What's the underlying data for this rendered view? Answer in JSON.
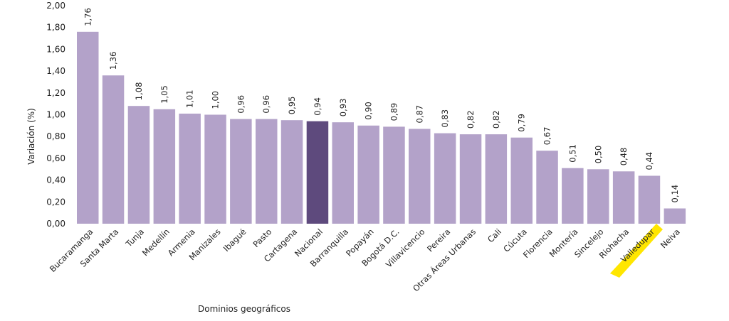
{
  "chart_data": {
    "type": "bar",
    "title": "",
    "xlabel": "Dominios geográficos",
    "ylabel": "Variación (%)",
    "ylim": [
      0,
      2
    ],
    "yticks": [
      "0,00",
      "0,20",
      "0,40",
      "0,60",
      "0,80",
      "1,00",
      "1,20",
      "1,40",
      "1,60",
      "1,80",
      "2,00"
    ],
    "ytick_values": [
      0,
      0.2,
      0.4,
      0.6,
      0.8,
      1.0,
      1.2,
      1.4,
      1.6,
      1.8,
      2.0
    ],
    "grid": false,
    "categories": [
      "Bucaramanga",
      "Santa Marta",
      "Tunja",
      "Medellín",
      "Armenia",
      "Manizales",
      "Ibagué",
      "Pasto",
      "Cartagena",
      "Nacional",
      "Barranquilla",
      "Popayán",
      "Bogotá D.C.",
      "Villavicencio",
      "Pereira",
      "Otras Áreas Urbanas",
      "Cali",
      "Cúcuta",
      "Florencia",
      "Montería",
      "Sincelejo",
      "Riohacha",
      "Valledupar",
      "Neiva"
    ],
    "values": [
      1.76,
      1.36,
      1.08,
      1.05,
      1.01,
      1.0,
      0.96,
      0.96,
      0.95,
      0.94,
      0.93,
      0.9,
      0.89,
      0.87,
      0.83,
      0.82,
      0.82,
      0.79,
      0.67,
      0.51,
      0.5,
      0.48,
      0.44,
      0.14
    ],
    "data_labels": [
      "1,76",
      "1,36",
      "1,08",
      "1,05",
      "1,01",
      "1,00",
      "0,96",
      "0,96",
      "0,95",
      "0,94",
      "0,93",
      "0,90",
      "0,89",
      "0,87",
      "0,83",
      "0,82",
      "0,82",
      "0,79",
      "0,67",
      "0,51",
      "0,50",
      "0,48",
      "0,44",
      "0,14"
    ],
    "highlight_category": "Nacional",
    "highlighted_label": "Valledupar",
    "colors": {
      "bar": "#b3a2c9",
      "bar_highlight": "#5e4a7d",
      "label_highlight": "#ffe600"
    }
  }
}
